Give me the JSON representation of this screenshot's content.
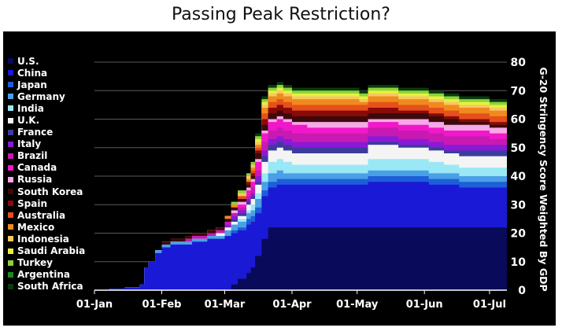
{
  "chart_data": {
    "type": "area",
    "stacked": true,
    "title": "Passing Peak Restriction?",
    "ylabel": "G-20 Stringency Score Weighted By GDP",
    "ylim": [
      0,
      80
    ],
    "y_ticks": [
      "0",
      "10",
      "20",
      "30",
      "40",
      "50",
      "60",
      "70",
      "80"
    ],
    "x_ticks": [
      "01-Jan",
      "01-Feb",
      "01-Mar",
      "01-Apr",
      "01-May",
      "01-Jun",
      "01-Jul"
    ],
    "x_range_days": [
      0,
      190
    ],
    "x_tick_days": [
      0,
      31,
      60,
      91,
      121,
      152,
      182
    ],
    "legend_position": "left",
    "grid": true,
    "series": [
      {
        "name": "U.S.",
        "color": "#0a0a5a"
      },
      {
        "name": "China",
        "color": "#1a1ad6"
      },
      {
        "name": "Japan",
        "color": "#1e5ed8"
      },
      {
        "name": "Germany",
        "color": "#4aa0e6"
      },
      {
        "name": "India",
        "color": "#9ae8f6"
      },
      {
        "name": "U.K.",
        "color": "#f4f4f4"
      },
      {
        "name": "France",
        "color": "#3c3c9c"
      },
      {
        "name": "Italy",
        "color": "#8a1ad6"
      },
      {
        "name": "Brazil",
        "color": "#c81ab2"
      },
      {
        "name": "Canada",
        "color": "#f018c8"
      },
      {
        "name": "Russia",
        "color": "#f7a8e8"
      },
      {
        "name": "South Korea",
        "color": "#3c0a0a"
      },
      {
        "name": "Spain",
        "color": "#8a0a0a"
      },
      {
        "name": "Australia",
        "color": "#e6501a"
      },
      {
        "name": "Mexico",
        "color": "#f08a1e"
      },
      {
        "name": "Indonesia",
        "color": "#f6c860"
      },
      {
        "name": "Saudi Arabia",
        "color": "#e8f03c"
      },
      {
        "name": "Turkey",
        "color": "#8ad23c"
      },
      {
        "name": "Argentina",
        "color": "#1e8a1e"
      },
      {
        "name": "South Africa",
        "color": "#0a3c0a"
      }
    ],
    "x": [
      0,
      7,
      14,
      21,
      23,
      25,
      28,
      31,
      35,
      38,
      42,
      45,
      49,
      52,
      56,
      60,
      63,
      66,
      70,
      72,
      74,
      77,
      80,
      84,
      87,
      91,
      98,
      105,
      112,
      119,
      122,
      126,
      133,
      140,
      147,
      154,
      161,
      168,
      175,
      182,
      190
    ],
    "cumulative": [
      [
        0,
        0,
        0,
        0,
        0,
        0,
        0,
        0,
        0,
        0,
        0,
        0,
        0,
        0,
        0,
        0,
        2,
        4,
        6,
        8,
        12,
        18,
        22,
        22,
        22,
        22,
        22,
        22,
        22,
        22,
        22,
        22,
        22,
        22,
        22,
        22,
        22,
        22,
        22,
        22,
        22
      ],
      [
        0,
        0.5,
        1,
        2,
        8,
        10,
        13,
        15,
        16,
        16,
        16,
        17,
        17,
        18,
        18,
        19,
        20,
        21,
        23,
        24,
        27,
        33,
        36,
        37,
        37,
        37,
        37,
        37,
        37,
        37,
        37,
        38,
        38,
        38,
        38,
        37,
        37,
        36,
        36,
        36,
        36
      ],
      [
        0,
        0.5,
        1,
        2,
        8,
        10,
        13,
        15,
        16,
        16,
        16,
        17,
        17,
        18,
        18,
        19,
        21,
        22,
        25,
        26,
        29,
        35,
        38,
        39,
        39,
        39,
        39,
        39,
        39,
        39,
        39,
        40,
        40,
        40,
        40,
        39,
        39,
        38,
        38,
        38,
        38
      ],
      [
        0,
        0.5,
        1,
        2,
        8,
        10,
        14,
        16,
        17,
        17,
        17,
        18,
        18,
        19,
        19,
        21,
        23,
        24,
        27,
        28,
        32,
        38,
        41,
        42,
        41,
        41,
        41,
        41,
        41,
        41,
        41,
        42,
        42,
        42,
        42,
        41,
        41,
        40,
        40,
        40,
        40
      ],
      [
        0,
        0.5,
        1,
        2,
        8,
        10,
        14,
        16,
        17,
        17,
        17,
        18,
        18,
        19,
        19,
        21,
        23,
        25,
        28,
        30,
        34,
        41,
        45,
        46,
        45,
        44,
        44,
        44,
        44,
        44,
        44,
        46,
        46,
        46,
        46,
        45,
        44,
        43,
        43,
        43,
        43
      ],
      [
        0,
        0.5,
        1,
        2,
        8,
        10,
        14,
        16,
        17,
        17,
        17,
        18,
        18,
        19,
        20,
        22,
        24,
        26,
        30,
        32,
        37,
        45,
        49,
        50,
        49,
        48,
        48,
        48,
        48,
        48,
        48,
        51,
        51,
        50,
        50,
        49,
        48,
        47,
        47,
        47,
        46
      ],
      [
        0,
        0.5,
        1,
        2,
        8,
        10,
        14,
        16,
        17,
        17,
        17,
        18,
        18,
        19,
        20,
        22,
        25,
        27,
        31,
        33,
        38,
        47,
        51,
        52,
        51,
        50,
        50,
        50,
        50,
        50,
        50,
        52,
        52,
        51,
        51,
        50,
        49,
        49,
        49,
        49,
        48
      ],
      [
        0,
        0.5,
        1,
        2,
        8,
        10,
        14,
        16,
        17,
        17,
        17,
        18,
        18,
        19,
        20,
        23,
        26,
        28,
        32,
        34,
        40,
        49,
        53,
        54,
        53,
        52,
        52,
        52,
        52,
        52,
        52,
        54,
        54,
        53,
        53,
        52,
        51,
        51,
        51,
        51,
        50
      ],
      [
        0,
        0.5,
        1,
        2,
        8,
        10,
        14,
        16,
        17,
        17,
        18,
        19,
        19,
        20,
        21,
        24,
        27,
        29,
        33,
        36,
        42,
        52,
        56,
        57,
        56,
        55,
        55,
        55,
        55,
        55,
        55,
        57,
        57,
        56,
        56,
        55,
        54,
        54,
        54,
        53,
        52
      ],
      [
        0,
        0.5,
        1,
        2,
        8,
        10,
        14,
        16,
        17,
        17,
        18,
        19,
        19,
        20,
        21,
        24,
        27,
        30,
        35,
        38,
        45,
        55,
        59,
        60,
        59,
        58,
        57,
        57,
        57,
        57,
        57,
        59,
        59,
        58,
        58,
        57,
        56,
        56,
        56,
        55,
        54
      ],
      [
        0,
        0.5,
        1,
        2,
        8,
        10,
        14,
        16,
        17,
        17,
        18,
        19,
        19,
        20,
        21,
        24,
        28,
        31,
        36,
        39,
        46,
        56,
        60,
        61,
        60,
        59,
        59,
        59,
        59,
        59,
        59,
        60,
        60,
        60,
        60,
        59,
        58,
        58,
        58,
        57,
        56
      ],
      [
        0,
        0.5,
        1,
        2,
        8,
        10,
        14,
        17,
        18,
        18,
        19,
        20,
        20,
        21,
        22,
        25,
        29,
        32,
        37,
        40,
        48,
        58,
        62,
        63,
        62,
        61,
        61,
        61,
        61,
        61,
        61,
        62,
        62,
        62,
        62,
        61,
        60,
        59,
        59,
        58,
        57
      ],
      [
        0,
        0.5,
        1,
        2,
        8,
        10,
        14,
        17,
        18,
        18,
        19,
        20,
        20,
        21,
        22,
        25,
        29,
        32,
        38,
        41,
        49,
        60,
        64,
        65,
        64,
        63,
        63,
        63,
        63,
        63,
        63,
        64,
        64,
        63,
        63,
        62,
        61,
        60,
        60,
        59,
        58
      ],
      [
        0,
        0.5,
        1,
        2,
        8,
        10,
        14,
        17,
        18,
        18,
        19,
        20,
        20,
        21,
        22,
        25,
        29,
        33,
        38,
        42,
        50,
        62,
        66,
        67,
        66,
        65,
        65,
        65,
        65,
        65,
        65,
        66,
        66,
        65,
        65,
        64,
        63,
        62,
        62,
        61,
        60
      ],
      [
        0,
        0.5,
        1,
        2,
        8,
        10,
        14,
        17,
        18,
        18,
        19,
        20,
        20,
        21,
        22,
        26,
        30,
        33,
        39,
        43,
        51,
        64,
        68,
        69,
        68,
        67,
        67,
        67,
        67,
        67,
        66,
        68,
        68,
        67,
        67,
        66,
        65,
        64,
        64,
        63,
        62
      ],
      [
        0,
        0.5,
        1,
        2,
        8,
        10,
        14,
        17,
        18,
        18,
        19,
        20,
        20,
        21,
        22,
        26,
        30,
        34,
        40,
        44,
        52,
        65,
        69,
        70,
        69,
        68,
        68,
        68,
        68,
        68,
        67,
        69,
        69,
        68,
        68,
        67,
        66,
        65,
        65,
        64,
        63
      ],
      [
        0,
        0.5,
        1,
        2,
        8,
        10,
        14,
        17,
        18,
        18,
        19,
        20,
        20,
        21,
        22,
        26,
        30,
        34,
        40,
        44,
        53,
        66,
        70,
        71,
        70,
        69,
        69,
        69,
        69,
        69,
        68,
        70,
        70,
        69,
        69,
        68,
        67,
        66,
        66,
        65,
        64
      ],
      [
        0,
        0.5,
        1,
        2,
        8,
        10,
        14,
        17,
        18,
        18,
        19,
        20,
        20,
        21,
        22,
        26,
        31,
        35,
        41,
        45,
        54,
        67,
        71,
        72,
        71,
        70,
        70,
        70,
        70,
        70,
        69,
        71,
        71,
        70,
        70,
        69,
        68,
        67,
        67,
        66,
        65
      ],
      [
        0,
        0.5,
        1,
        2,
        8,
        10,
        14,
        17,
        18,
        18,
        19,
        20,
        20,
        21,
        22,
        26,
        31,
        35,
        41,
        45,
        54,
        67,
        71,
        72,
        71,
        70,
        70,
        70,
        70,
        70,
        69,
        71,
        71,
        70,
        70,
        69,
        68,
        67,
        67,
        66,
        65
      ],
      [
        0,
        0.5,
        1,
        2,
        8,
        10,
        14,
        17,
        18,
        18,
        19,
        20,
        20,
        21,
        22,
        26,
        31,
        35,
        41,
        45,
        55,
        68,
        72,
        73,
        72,
        71,
        71,
        71,
        71,
        71,
        70,
        72,
        72,
        71,
        71,
        70,
        69,
        68,
        68,
        67,
        66
      ]
    ]
  }
}
